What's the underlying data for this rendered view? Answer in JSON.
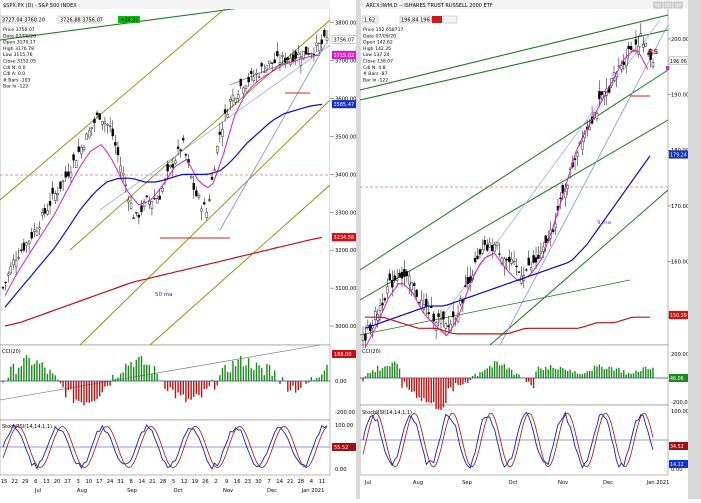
{
  "left": {
    "title": "$SPX:PX (D) - S&P 500 INDEX",
    "quote_a": "3727.04 3760.20",
    "quote_b": "3726.88 3756.07",
    "change": "+24.33",
    "info": [
      "Price  3756.07",
      "Date  07/09/20",
      "Open  3170.17",
      "High  3176.78",
      "Low  3115.76",
      "Close  3152.05",
      "Cdl  N: 0.0",
      "Cdl A: 0.0",
      "# Bars -103",
      "Bar Ix -122"
    ],
    "price_ticks": [
      "3800.00",
      "3700.00",
      "3600.00",
      "3500.00",
      "3400.00",
      "3300.00",
      "3200.00",
      "3100.00",
      "3000.00"
    ],
    "price_values": [
      3800,
      3700,
      3600,
      3500,
      3400,
      3300,
      3200,
      3100,
      3000
    ],
    "badges": {
      "last": "3756.07",
      "magenta": "3715.02",
      "blue": "3585.47",
      "red": "3234.56"
    },
    "ma_label": "50 ma",
    "cci_label": "CCI(20)",
    "cci_ticks": [
      "200.00",
      "0.00",
      "-200.00"
    ],
    "cci_badge": "166.00",
    "stoch_label": "StochRSI(14,14,1,1)",
    "stoch_ticks": [
      "100.00",
      "0.00"
    ],
    "stoch_badge": "55.52",
    "dates": [
      "15",
      "22",
      "29",
      "6",
      "13",
      "20",
      "27",
      "3",
      "10",
      "17",
      "24",
      "31",
      "8",
      "14",
      "21",
      "28",
      "5",
      "12",
      "19",
      "26",
      "2",
      "9",
      "16",
      "23",
      "30",
      "7",
      "14",
      "21",
      "28",
      "4",
      "11"
    ],
    "months": [
      "Jul",
      "Aug",
      "Sep",
      "Oct",
      "Nov",
      "Dec",
      "Jan 2021"
    ]
  },
  "right": {
    "title": "ARCX:IWM.D -- ISHARES TRUST RUSSELL 2000 ETF",
    "quote_a": "1.62",
    "quote_b": "196.84 196.06",
    "info": [
      "Price  152.658717",
      "Date  07/09/20",
      "Open  142.62",
      "High  142.35",
      "Low  137.24",
      "Close  138.07",
      "Cdl  N: 4.8",
      "# Bars -87",
      "Bar Ix -122"
    ],
    "price_ticks": [
      "200.00",
      "190.00",
      "180.00",
      "170.00",
      "160.00",
      "150.00"
    ],
    "price_values": [
      200,
      190,
      180,
      170,
      160,
      150
    ],
    "badges": {
      "last": "196.06",
      "blue": "179.24",
      "red": "150.39"
    },
    "rs_label": "RS",
    "ma_label": "9 ma",
    "cci_label": "CCI(20)",
    "cci_ticks": [
      "200.00",
      "0.00",
      "-200.00"
    ],
    "cci_badge": "46.06",
    "stoch_label": "StochRSI(14,14,1,1)",
    "stoch_ticks": [
      "100.00",
      "0.00"
    ],
    "stoch_badge_a": "34.52",
    "stoch_badge_b": "14.12",
    "date_ticks": [
      "Jul",
      "Aug",
      "Sep",
      "Oct",
      "Nov",
      "Dec",
      "Jan 2021"
    ]
  },
  "chart_data": [
    {
      "type": "candlestick",
      "title": "$SPX:PX (D) - S&P 500 INDEX",
      "months": [
        "Jul",
        "Aug",
        "Sep",
        "Oct",
        "Nov",
        "Dec",
        "Jan 2021"
      ],
      "ylim": [
        2950,
        3860
      ],
      "close_approx": [
        3100,
        3180,
        3220,
        3270,
        3330,
        3380,
        3440,
        3500,
        3560,
        3520,
        3400,
        3280,
        3330,
        3340,
        3420,
        3480,
        3350,
        3300,
        3500,
        3600,
        3640,
        3660,
        3690,
        3700,
        3710,
        3720,
        3730,
        3756
      ],
      "ma_20_approx": [
        3080,
        3140,
        3190,
        3240,
        3290,
        3350,
        3410,
        3460,
        3480,
        3430,
        3360,
        3320,
        3330,
        3370,
        3420,
        3440,
        3380,
        3360,
        3450,
        3560,
        3620,
        3650,
        3670,
        3690,
        3700,
        3710,
        3715
      ],
      "ma_50_approx": [
        3050,
        3090,
        3130,
        3170,
        3210,
        3260,
        3310,
        3350,
        3380,
        3390,
        3390,
        3380,
        3380,
        3390,
        3400,
        3400,
        3400,
        3410,
        3440,
        3480,
        3510,
        3540,
        3560,
        3570,
        3580,
        3585
      ],
      "ma_200_approx": [
        3000,
        3010,
        3025,
        3040,
        3055,
        3070,
        3085,
        3100,
        3115,
        3125,
        3135,
        3145,
        3155,
        3165,
        3175,
        3185,
        3195,
        3205,
        3215,
        3225,
        3234
      ],
      "last": 3756.07,
      "cci_last": 166.0,
      "stochrsi_last": 55.52
    },
    {
      "type": "candlestick",
      "title": "ARCX:IWM.D -- ISHARES TRUST RUSSELL 2000 ETF",
      "months": [
        "Jul",
        "Aug",
        "Sep",
        "Oct",
        "Nov",
        "Dec",
        "Jan 2021"
      ],
      "ylim": [
        145,
        205
      ],
      "close_approx": [
        146,
        150,
        155,
        158,
        156,
        152,
        150,
        148,
        152,
        158,
        162,
        163,
        160,
        158,
        159,
        162,
        168,
        175,
        182,
        186,
        190,
        194,
        198,
        200,
        196
      ],
      "ma_blue_approx": [
        148,
        149,
        150,
        151,
        152,
        152,
        153,
        154,
        155,
        156,
        157,
        158,
        159,
        160,
        163,
        167,
        171,
        175,
        179
      ],
      "ma_red_approx": [
        150,
        150,
        149,
        148,
        148,
        147,
        147,
        147,
        147,
        148,
        148,
        148,
        148,
        149,
        149,
        150,
        150
      ],
      "last": 196.06,
      "cci_last": 46.06,
      "stochrsi_last": [
        34.52,
        14.12
      ]
    }
  ]
}
